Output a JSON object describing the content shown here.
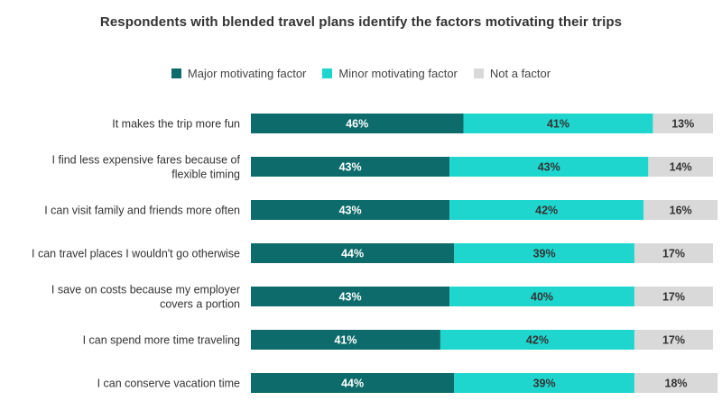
{
  "chart_data": {
    "type": "bar",
    "orientation": "horizontal",
    "stacked": true,
    "title": "Respondents with blended travel plans identify the factors motivating their trips",
    "categories": [
      [
        "It makes the trip more fun"
      ],
      [
        "I find less expensive fares because of",
        "flexible timing"
      ],
      [
        "I can visit family and friends more often"
      ],
      [
        "I can travel places I wouldn't go otherwise"
      ],
      [
        "I save on costs because my employer",
        "covers a portion"
      ],
      [
        "I can spend more time traveling"
      ],
      [
        "I can conserve vacation time"
      ]
    ],
    "series": [
      {
        "name": "Major motivating factor",
        "color": "#0e6b6b",
        "label_color": "#ffffff",
        "values": [
          46,
          43,
          43,
          44,
          43,
          41,
          44
        ]
      },
      {
        "name": "Minor motivating factor",
        "color": "#1fd6cf",
        "label_color": "#333333",
        "values": [
          41,
          43,
          42,
          39,
          40,
          42,
          39
        ]
      },
      {
        "name": "Not a factor",
        "color": "#d9d9d9",
        "label_color": "#333333",
        "values": [
          13,
          14,
          16,
          17,
          17,
          17,
          18
        ]
      }
    ],
    "value_suffix": "%",
    "xlim": [
      0,
      100
    ],
    "legend_position": "top-center",
    "grid": false
  }
}
